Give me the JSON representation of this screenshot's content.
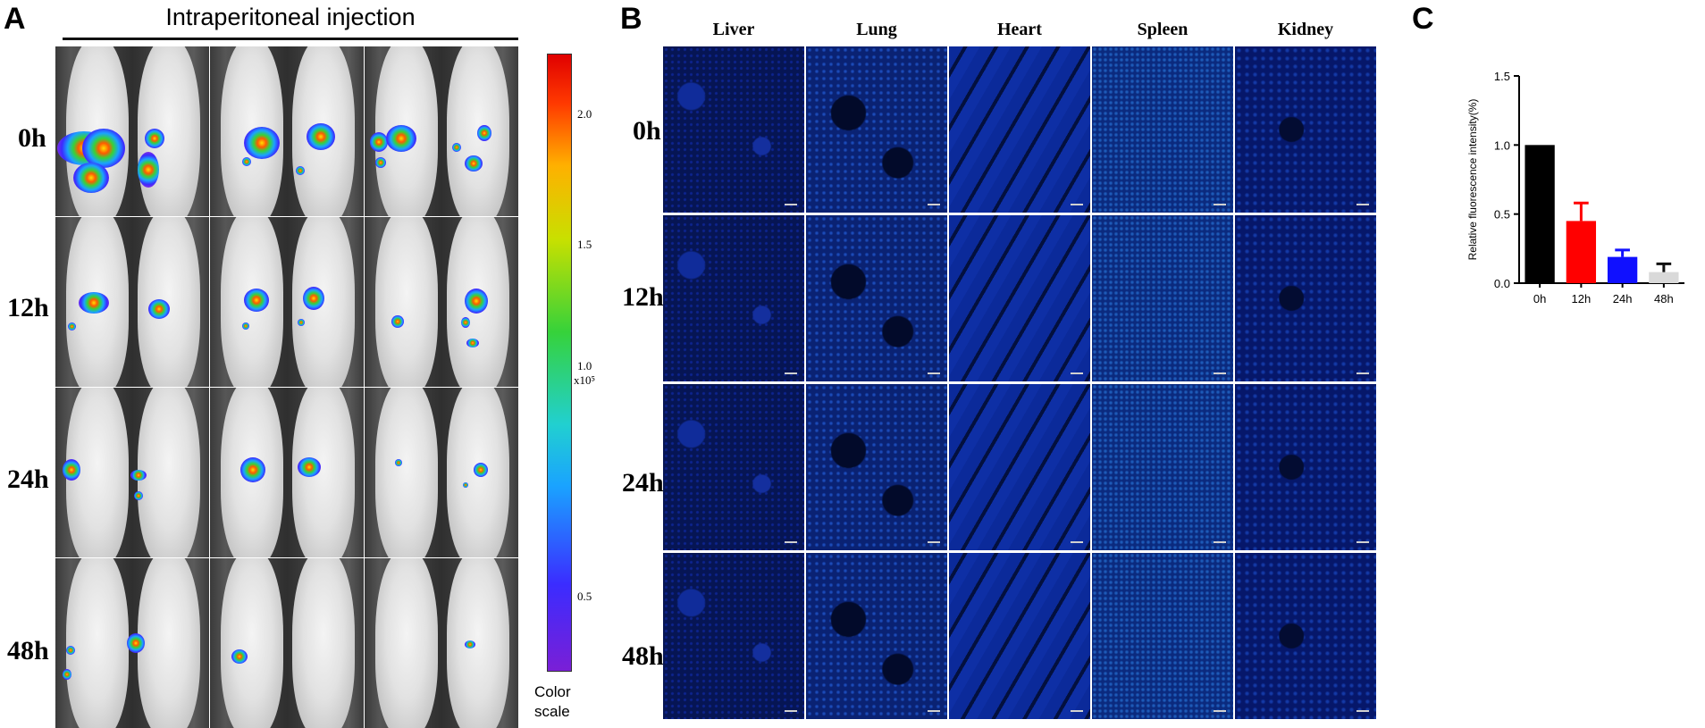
{
  "panel_a": {
    "letter": "A",
    "title": "Intraperitoneal injection",
    "row_labels": [
      "0h",
      "12h",
      "24h",
      "48h"
    ],
    "colorbar": {
      "ticks": [
        "2.0",
        "1.5",
        "1.0",
        "0.5"
      ],
      "exponent": "x10⁵",
      "label_line1": "Color",
      "label_line2": "scale"
    }
  },
  "panel_b": {
    "letter": "B",
    "column_labels": [
      "Liver",
      "Lung",
      "Heart",
      "Spleen",
      "Kidney"
    ],
    "row_labels": [
      "0h",
      "12h",
      "24h",
      "48h"
    ]
  },
  "panel_c": {
    "letter": "C"
  },
  "chart_data": {
    "type": "bar",
    "categories": [
      "0h",
      "12h",
      "24h",
      "48h"
    ],
    "values": [
      1.0,
      0.45,
      0.19,
      0.08
    ],
    "errors": [
      0.0,
      0.13,
      0.05,
      0.06
    ],
    "bar_colors": [
      "#000000",
      "#ff0000",
      "#1010ff",
      "#d9d9d9"
    ],
    "title": "",
    "xlabel": "",
    "ylabel": "Relative fluorescence intensity(%)",
    "ylim": [
      0,
      1.5
    ],
    "yticks": [
      0.0,
      0.5,
      1.0,
      1.5
    ],
    "ytick_labels": [
      "0.0",
      "0.5",
      "1.0",
      "1.5"
    ]
  }
}
